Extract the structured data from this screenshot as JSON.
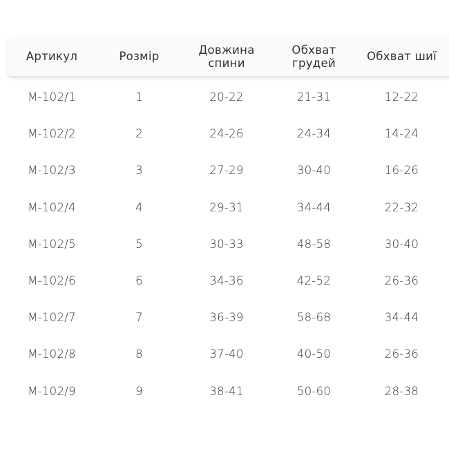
{
  "headers": [
    "Артикул",
    "Розмір",
    "Довжина спини",
    "Обхват грудей",
    "Обхват шиї"
  ],
  "header_lines": [
    [
      "Артикул"
    ],
    [
      "Розмір"
    ],
    [
      "Довжина",
      "спини"
    ],
    [
      "Обхват",
      "грудей"
    ],
    [
      "Обхват шиї"
    ]
  ],
  "rows": [
    [
      "М-102/1",
      "1",
      "20-22",
      "21-31",
      "12-22"
    ],
    [
      "М-102/2",
      "2",
      "24-26",
      "24-34",
      "14-24"
    ],
    [
      "М-102/3",
      "3",
      "27-29",
      "30-40",
      "16-26"
    ],
    [
      "М-102/4",
      "4",
      "29-31",
      "34-44",
      "22-32"
    ],
    [
      "М-102/5",
      "5",
      "30-33",
      "48-58",
      "30-40"
    ],
    [
      "М-102/6",
      "6",
      "34-36",
      "42-52",
      "26-36"
    ],
    [
      "М-102/7",
      "7",
      "36-39",
      "58-68",
      "34-44"
    ],
    [
      "М-102/8",
      "8",
      "37-40",
      "40-50",
      "26-36"
    ],
    [
      "М-102/9",
      "9",
      "38-41",
      "50-60",
      "28-38"
    ]
  ]
}
